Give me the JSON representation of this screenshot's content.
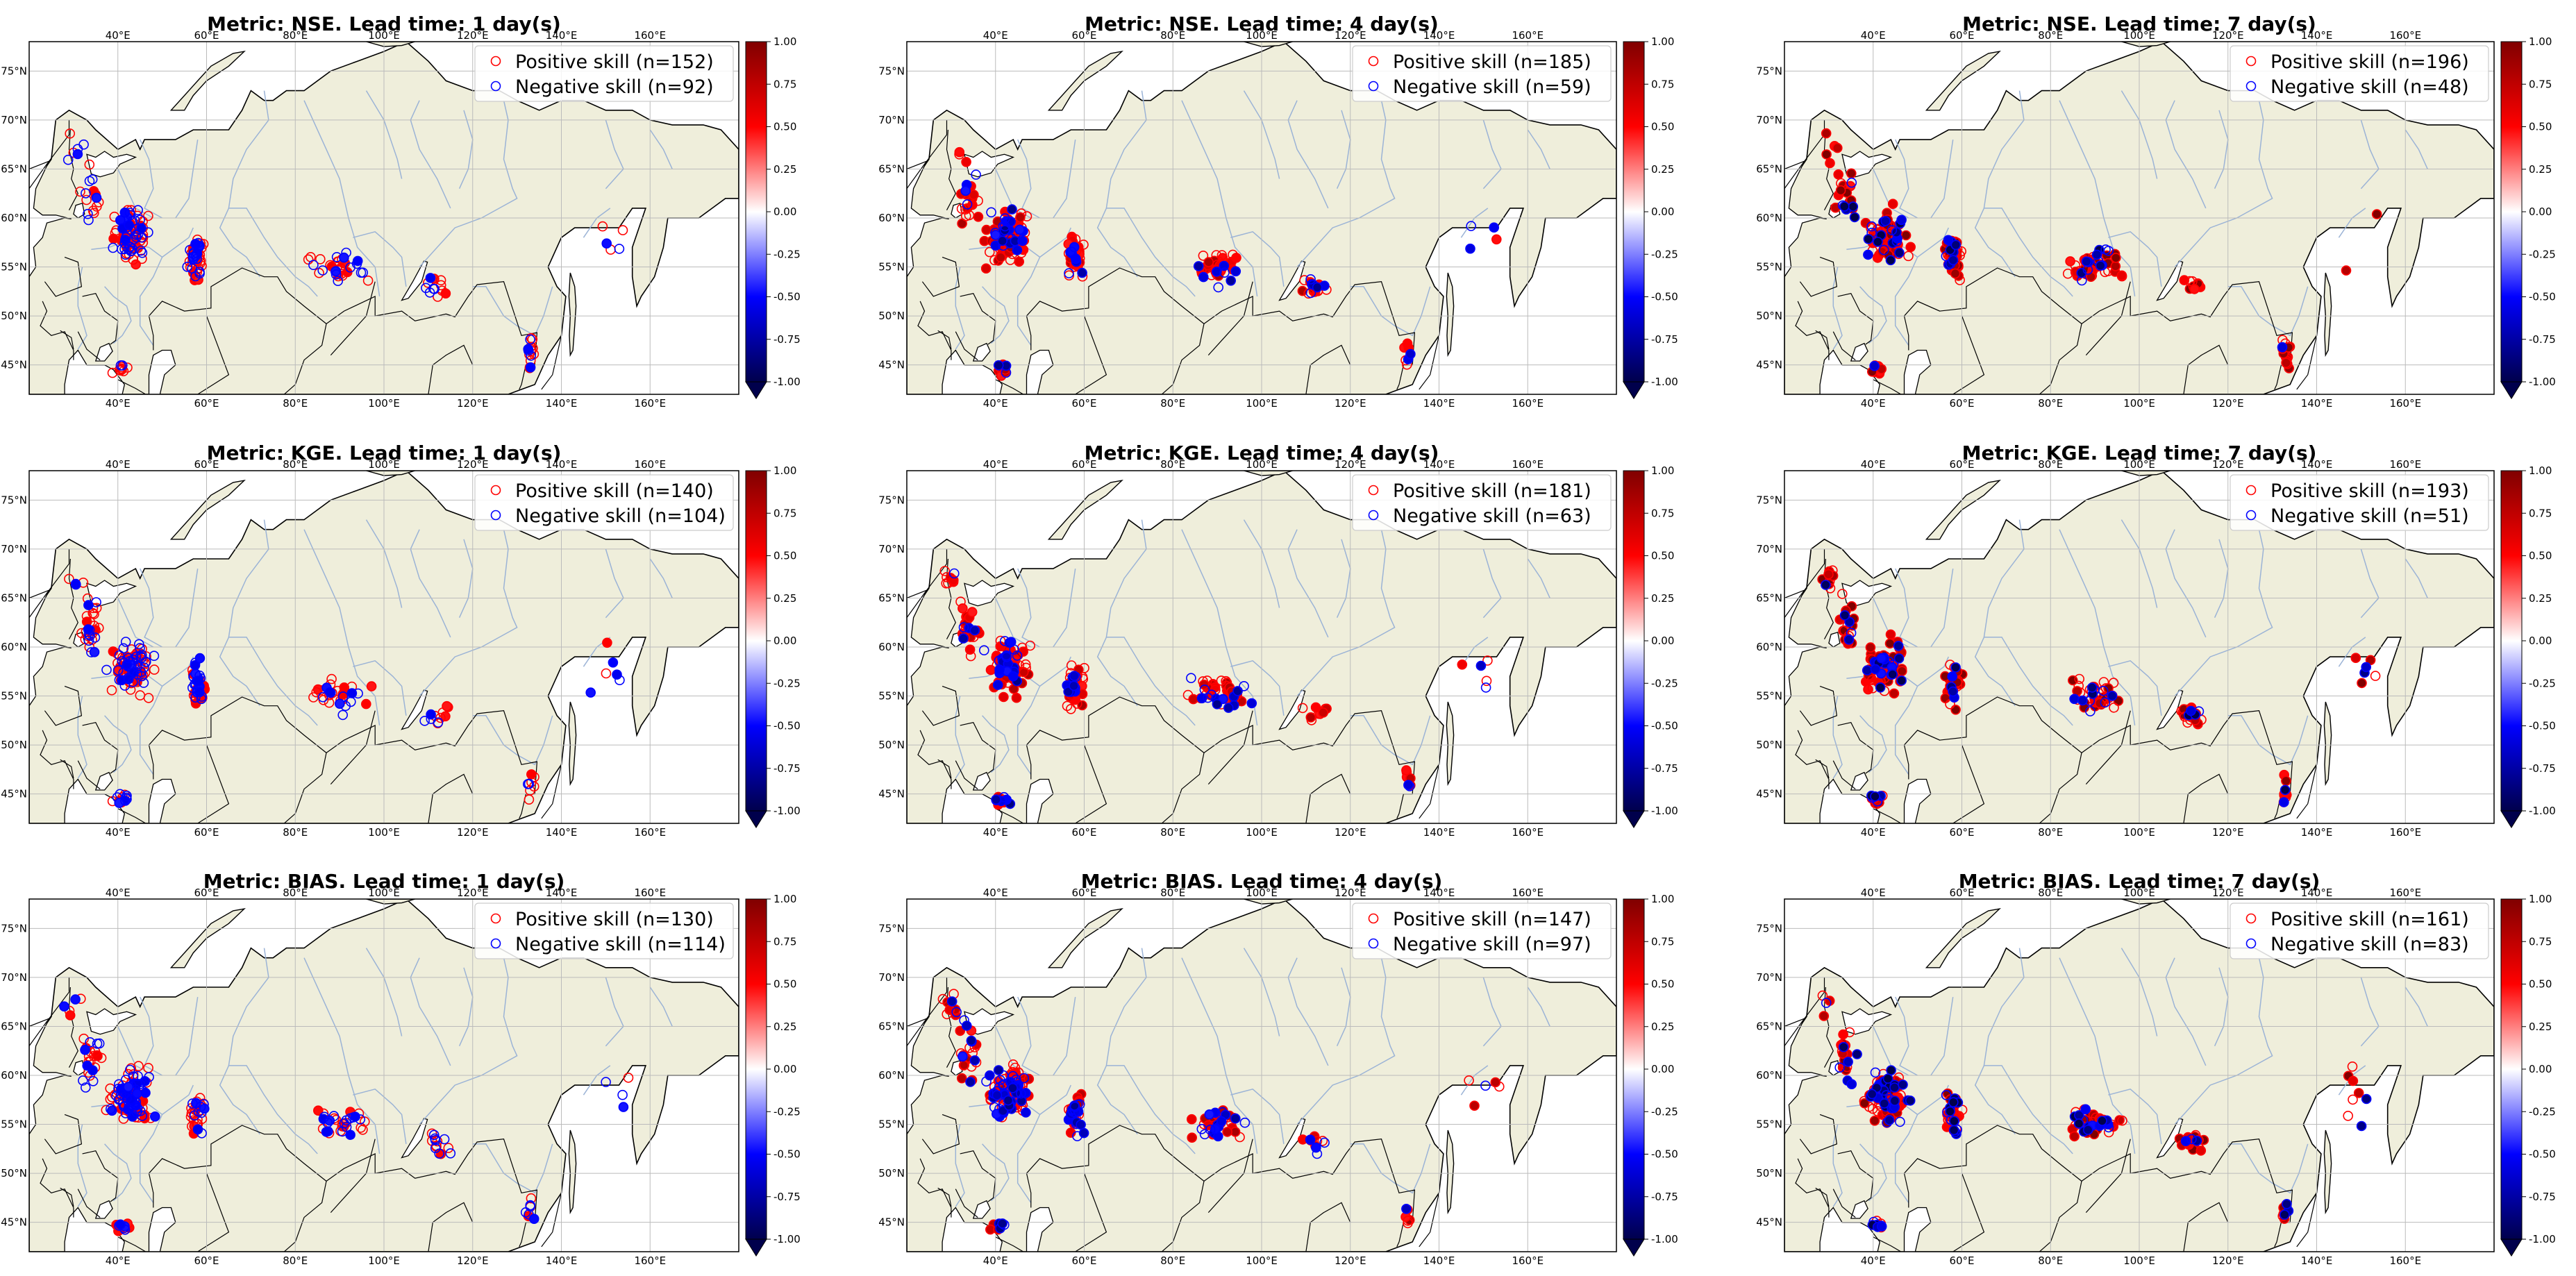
{
  "figure": {
    "colormap": "seismic",
    "colors": {
      "land": "#efeedb",
      "sea": "#ffffff",
      "rivers": "#9bb3d6",
      "coast": "#000000",
      "grid": "#bbbbbb",
      "positive": "#ff0000",
      "negative": "#0000ff"
    }
  },
  "chart_data": [
    {
      "type": "scatter",
      "title": "Metric: NSE. Lead time: 1 day(s)",
      "metric": "NSE",
      "lead_days": 1,
      "positive_label": "Positive skill (n=152)",
      "negative_label": "Negative skill (n=92)",
      "positive_count": 152,
      "negative_count": 92,
      "longitude_ticks": [
        "40°E",
        "60°E",
        "80°E",
        "100°E",
        "120°E",
        "140°E",
        "160°E"
      ],
      "latitude_ticks": [
        "45°N",
        "50°N",
        "55°N",
        "60°N",
        "65°N",
        "70°N",
        "75°N"
      ],
      "colorbar_ticks": [
        "1.00",
        "0.75",
        "0.50",
        "0.25",
        "0.00",
        "-0.25",
        "-0.50",
        "-0.75",
        "-1.00"
      ],
      "vlim": [
        -1,
        1
      ],
      "xlim_lon": [
        20,
        180
      ],
      "ylim_lat": [
        42,
        78
      ],
      "points": []
    },
    {
      "type": "scatter",
      "title": "Metric: NSE. Lead time: 4 day(s)",
      "metric": "NSE",
      "lead_days": 4,
      "positive_label": "Positive skill (n=185)",
      "negative_label": "Negative skill (n=59)",
      "positive_count": 185,
      "negative_count": 59,
      "longitude_ticks": [
        "40°E",
        "60°E",
        "80°E",
        "100°E",
        "120°E",
        "140°E",
        "160°E"
      ],
      "latitude_ticks": [
        "45°N",
        "50°N",
        "55°N",
        "60°N",
        "65°N",
        "70°N",
        "75°N"
      ],
      "colorbar_ticks": [
        "1.00",
        "0.75",
        "0.50",
        "0.25",
        "0.00",
        "-0.25",
        "-0.50",
        "-0.75",
        "-1.00"
      ],
      "vlim": [
        -1,
        1
      ],
      "xlim_lon": [
        20,
        180
      ],
      "ylim_lat": [
        42,
        78
      ],
      "points": []
    },
    {
      "type": "scatter",
      "title": "Metric: NSE. Lead time: 7 day(s)",
      "metric": "NSE",
      "lead_days": 7,
      "positive_label": "Positive skill (n=196)",
      "negative_label": "Negative skill (n=48)",
      "positive_count": 196,
      "negative_count": 48,
      "longitude_ticks": [
        "40°E",
        "60°E",
        "80°E",
        "100°E",
        "120°E",
        "140°E",
        "160°E"
      ],
      "latitude_ticks": [
        "45°N",
        "50°N",
        "55°N",
        "60°N",
        "65°N",
        "70°N",
        "75°N"
      ],
      "colorbar_ticks": [
        "1.00",
        "0.75",
        "0.50",
        "0.25",
        "0.00",
        "-0.25",
        "-0.50",
        "-0.75",
        "-1.00"
      ],
      "vlim": [
        -1,
        1
      ],
      "xlim_lon": [
        20,
        180
      ],
      "ylim_lat": [
        42,
        78
      ],
      "points": []
    },
    {
      "type": "scatter",
      "title": "Metric: KGE. Lead time: 1 day(s)",
      "metric": "KGE",
      "lead_days": 1,
      "positive_label": "Positive skill (n=140)",
      "negative_label": "Negative skill (n=104)",
      "positive_count": 140,
      "negative_count": 104,
      "longitude_ticks": [
        "40°E",
        "60°E",
        "80°E",
        "100°E",
        "120°E",
        "140°E",
        "160°E"
      ],
      "latitude_ticks": [
        "45°N",
        "50°N",
        "55°N",
        "60°N",
        "65°N",
        "70°N",
        "75°N"
      ],
      "colorbar_ticks": [
        "1.00",
        "0.75",
        "0.50",
        "0.25",
        "0.00",
        "-0.25",
        "-0.50",
        "-0.75",
        "-1.00"
      ],
      "vlim": [
        -1,
        1
      ],
      "xlim_lon": [
        20,
        180
      ],
      "ylim_lat": [
        42,
        78
      ],
      "points": []
    },
    {
      "type": "scatter",
      "title": "Metric: KGE. Lead time: 4 day(s)",
      "metric": "KGE",
      "lead_days": 4,
      "positive_label": "Positive skill (n=181)",
      "negative_label": "Negative skill (n=63)",
      "positive_count": 181,
      "negative_count": 63,
      "longitude_ticks": [
        "40°E",
        "60°E",
        "80°E",
        "100°E",
        "120°E",
        "140°E",
        "160°E"
      ],
      "latitude_ticks": [
        "45°N",
        "50°N",
        "55°N",
        "60°N",
        "65°N",
        "70°N",
        "75°N"
      ],
      "colorbar_ticks": [
        "1.00",
        "0.75",
        "0.50",
        "0.25",
        "0.00",
        "-0.25",
        "-0.50",
        "-0.75",
        "-1.00"
      ],
      "vlim": [
        -1,
        1
      ],
      "xlim_lon": [
        20,
        180
      ],
      "ylim_lat": [
        42,
        78
      ],
      "points": []
    },
    {
      "type": "scatter",
      "title": "Metric: KGE. Lead time: 7 day(s)",
      "metric": "KGE",
      "lead_days": 7,
      "positive_label": "Positive skill (n=193)",
      "negative_label": "Negative skill (n=51)",
      "positive_count": 193,
      "negative_count": 51,
      "longitude_ticks": [
        "40°E",
        "60°E",
        "80°E",
        "100°E",
        "120°E",
        "140°E",
        "160°E"
      ],
      "latitude_ticks": [
        "45°N",
        "50°N",
        "55°N",
        "60°N",
        "65°N",
        "70°N",
        "75°N"
      ],
      "colorbar_ticks": [
        "1.00",
        "0.75",
        "0.50",
        "0.25",
        "0.00",
        "-0.25",
        "-0.50",
        "-0.75",
        "-1.00"
      ],
      "vlim": [
        -1,
        1
      ],
      "xlim_lon": [
        20,
        180
      ],
      "ylim_lat": [
        42,
        78
      ],
      "points": []
    },
    {
      "type": "scatter",
      "title": "Metric: BIAS. Lead time: 1 day(s)",
      "metric": "BIAS",
      "lead_days": 1,
      "positive_label": "Positive skill (n=130)",
      "negative_label": "Negative skill (n=114)",
      "positive_count": 130,
      "negative_count": 114,
      "longitude_ticks": [
        "40°E",
        "60°E",
        "80°E",
        "100°E",
        "120°E",
        "140°E",
        "160°E"
      ],
      "latitude_ticks": [
        "45°N",
        "50°N",
        "55°N",
        "60°N",
        "65°N",
        "70°N",
        "75°N"
      ],
      "colorbar_ticks": [
        "1.00",
        "0.75",
        "0.50",
        "0.25",
        "0.00",
        "-0.25",
        "-0.50",
        "-0.75",
        "-1.00"
      ],
      "vlim": [
        -1,
        1
      ],
      "xlim_lon": [
        20,
        180
      ],
      "ylim_lat": [
        42,
        78
      ],
      "points": []
    },
    {
      "type": "scatter",
      "title": "Metric: BIAS. Lead time: 4 day(s)",
      "metric": "BIAS",
      "lead_days": 4,
      "positive_label": "Positive skill (n=147)",
      "negative_label": "Negative skill (n=97)",
      "positive_count": 147,
      "negative_count": 97,
      "longitude_ticks": [
        "40°E",
        "60°E",
        "80°E",
        "100°E",
        "120°E",
        "140°E",
        "160°E"
      ],
      "latitude_ticks": [
        "45°N",
        "50°N",
        "55°N",
        "60°N",
        "65°N",
        "70°N",
        "75°N"
      ],
      "colorbar_ticks": [
        "1.00",
        "0.75",
        "0.50",
        "0.25",
        "0.00",
        "-0.25",
        "-0.50",
        "-0.75",
        "-1.00"
      ],
      "vlim": [
        -1,
        1
      ],
      "xlim_lon": [
        20,
        180
      ],
      "ylim_lat": [
        42,
        78
      ],
      "points": []
    },
    {
      "type": "scatter",
      "title": "Metric: BIAS. Lead time: 7 day(s)",
      "metric": "BIAS",
      "lead_days": 7,
      "positive_label": "Positive skill (n=161)",
      "negative_label": "Negative skill (n=83)",
      "positive_count": 161,
      "negative_count": 83,
      "longitude_ticks": [
        "40°E",
        "60°E",
        "80°E",
        "100°E",
        "120°E",
        "140°E",
        "160°E"
      ],
      "latitude_ticks": [
        "45°N",
        "50°N",
        "55°N",
        "60°N",
        "65°N",
        "70°N",
        "75°N"
      ],
      "colorbar_ticks": [
        "1.00",
        "0.75",
        "0.50",
        "0.25",
        "0.00",
        "-0.25",
        "-0.50",
        "-0.75",
        "-1.00"
      ],
      "vlim": [
        -1,
        1
      ],
      "xlim_lon": [
        20,
        180
      ],
      "ylim_lat": [
        42,
        78
      ],
      "points": []
    }
  ]
}
